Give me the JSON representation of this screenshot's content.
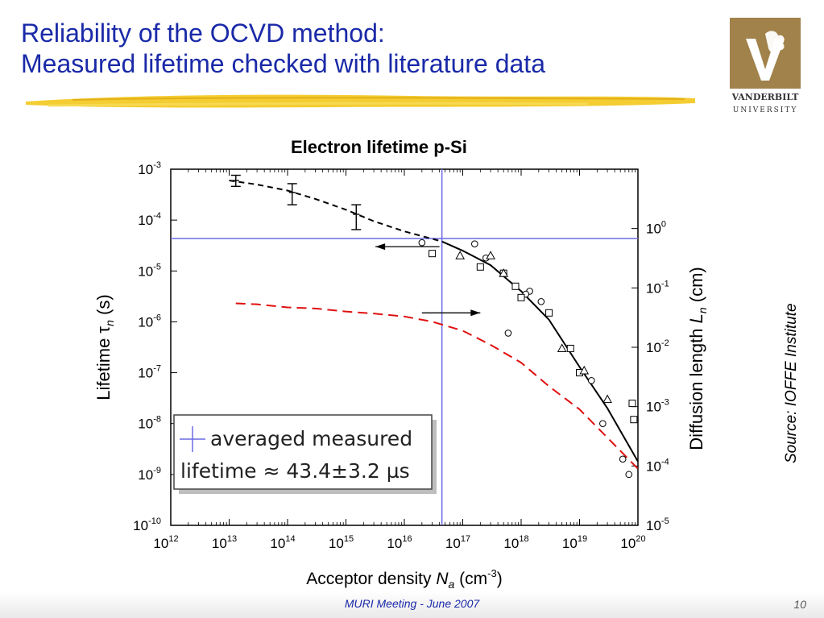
{
  "slide": {
    "title_line1": "Reliability of the OCVD method:",
    "title_line2": "Measured lifetime checked with literature data",
    "source": "Source: IOFFE Institute",
    "footer": "MURI Meeting - June 2007",
    "page_number": "10",
    "logo_line1": "VANDERBILT",
    "logo_line2": "UNIVERSITY",
    "colors": {
      "title": "#1a2aa8",
      "logo_bg": "#a0824a",
      "measured_line": "#6a6ae6",
      "diffusion_curve": "#e01010"
    }
  },
  "chart_data": {
    "type": "line",
    "title": "Electron lifetime p-Si",
    "xlabel_prefix": "Acceptor density ",
    "xlabel_var": "N",
    "xlabel_sub": "a",
    "xlabel_unit": " (cm",
    "xlabel_unit_exp": "-3",
    "xlabel_unit_end": ")",
    "ylabel_left_prefix": "Lifetime ",
    "ylabel_left_var": "τ",
    "ylabel_left_sub": "n",
    "ylabel_left_unit": " (s)",
    "ylabel_right_prefix": "Diffusion length  ",
    "ylabel_right_var": "L",
    "ylabel_right_sub": "n",
    "ylabel_right_unit": " (cm)",
    "x_scale": "log",
    "y_scale": "log",
    "x_exponents": [
      12,
      13,
      14,
      15,
      16,
      17,
      18,
      19,
      20
    ],
    "y_left_exponents": [
      -3,
      -4,
      -5,
      -6,
      -7,
      -8,
      -9,
      -10
    ],
    "y_right_exponents": [
      0,
      -1,
      -2,
      -3,
      -4,
      -5
    ],
    "tick_base": "10",
    "xlim": [
      1000000000000.0,
      1e+20
    ],
    "ylim_left": [
      1e-10,
      0.001
    ],
    "ylim_right": [
      1e-05,
      10.0
    ],
    "series": [
      {
        "key": "lifetime_fit",
        "axis": "left",
        "x": [
          10000000000000.0,
          30000000000000.0,
          100000000000000.0,
          300000000000000.0,
          1000000000000000.0,
          3000000000000000.0,
          1e+16,
          4.4e+16,
          1e+17,
          3e+17,
          1e+18,
          3e+18,
          1e+19,
          3e+19,
          1e+20
        ],
        "y": [
          0.0006,
          0.0005,
          0.00038,
          0.00026,
          0.00016,
          9.5e-05,
          6e-05,
          3.8e-05,
          2.5e-05,
          1.3e-05,
          4e-06,
          1.1e-06,
          1.3e-07,
          2e-08,
          1.8e-09
        ]
      },
      {
        "key": "diffusion_length",
        "axis": "right",
        "x": [
          13000000000000.0,
          30000000000000.0,
          100000000000000.0,
          300000000000000.0,
          1000000000000000.0,
          3000000000000000.0,
          1e+16,
          3e+16,
          1e+17,
          3e+17,
          1e+18,
          3e+18,
          1e+19,
          3e+19,
          1e+20
        ],
        "y": [
          0.055,
          0.053,
          0.047,
          0.045,
          0.04,
          0.037,
          0.033,
          0.027,
          0.019,
          0.011,
          0.0055,
          0.0022,
          0.0009,
          0.0003,
          9e-05
        ]
      }
    ],
    "errorbars": {
      "x": [
        13000000000000.0,
        120000000000000.0,
        1500000000000000.0
      ],
      "y": [
        0.0006,
        0.00035,
        0.00013
      ],
      "ylow": [
        0.00046,
        0.0002,
        6.5e-05
      ],
      "yhigh": [
        0.00076,
        0.00052,
        0.0002
      ]
    },
    "markers_circle": {
      "x": [
        2e+16,
        1.6e+17,
        2.5e+17,
        1.4e+18,
        1.2e+18,
        2.2e+18,
        6e+17,
        1e+19,
        1.6e+19,
        2.5e+19,
        5.5e+19,
        7e+19
      ],
      "y": [
        3.6e-05,
        3.4e-05,
        1.8e-05,
        4e-06,
        3.5e-06,
        2.5e-06,
        6e-07,
        1e-07,
        7e-08,
        1e-08,
        2e-09,
        1e-09
      ]
    },
    "markers_square": {
      "x": [
        3e+16,
        2e+17,
        5e+17,
        8e+17,
        1e+18,
        3e+18,
        7e+18,
        1e+19,
        8e+19,
        8.5e+19
      ],
      "y": [
        2.2e-05,
        1.2e-05,
        9e-06,
        5e-06,
        3e-06,
        1.5e-06,
        3e-07,
        1e-07,
        2.5e-08,
        1.2e-08
      ]
    },
    "markers_triangle": {
      "x": [
        9e+16,
        3e+17,
        5e+17,
        5e+18,
        1.2e+19,
        3e+19
      ],
      "y": [
        2e-05,
        2e-05,
        9e-06,
        3e-07,
        1.1e-07,
        3e-08
      ]
    },
    "measured": {
      "x": 4.4e+16,
      "y": 4.34e-05
    },
    "arrows": [
      {
        "from_x": 4e+16,
        "to_x": 3200000000000000.0,
        "y": 3e-05,
        "direction": "left"
      },
      {
        "from_x": 2e+16,
        "to_x": 2e+17,
        "y": 1.5e-06,
        "direction": "right"
      }
    ],
    "legend": {
      "line1": "averaged measured",
      "line2": "lifetime ≈ 43.4±3.2 µs",
      "placement": "bottom-left"
    },
    "grid": false
  }
}
